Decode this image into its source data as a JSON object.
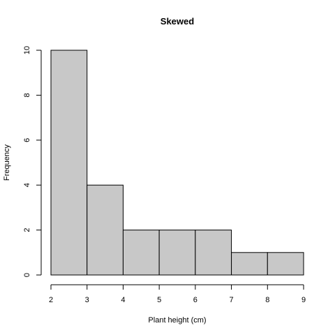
{
  "chart_data": {
    "type": "bar",
    "title": "Skewed",
    "xlabel": "Plant height (cm)",
    "ylabel": "Frequency",
    "bins": [
      {
        "x0": 2,
        "x1": 3,
        "count": 10
      },
      {
        "x0": 3,
        "x1": 4,
        "count": 4
      },
      {
        "x0": 4,
        "x1": 5,
        "count": 2
      },
      {
        "x0": 5,
        "x1": 6,
        "count": 2
      },
      {
        "x0": 6,
        "x1": 7,
        "count": 2
      },
      {
        "x0": 7,
        "x1": 8,
        "count": 1
      },
      {
        "x0": 8,
        "x1": 9,
        "count": 1
      }
    ],
    "xlim": [
      2,
      9
    ],
    "ylim": [
      0,
      10
    ],
    "xticks": [
      2,
      3,
      4,
      5,
      6,
      7,
      8,
      9
    ],
    "yticks": [
      0,
      2,
      4,
      6,
      8,
      10
    ],
    "grid": false,
    "bar_color": "#c8c8c8",
    "edge_color": "#000000"
  }
}
